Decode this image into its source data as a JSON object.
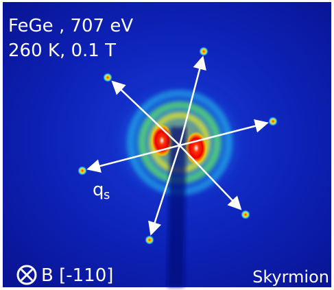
{
  "labels": {
    "sample": "FeGe , 707 eV",
    "conditions": "260 K, 0.1 T",
    "q": "q",
    "q_sub": "s",
    "field": "B [-110]",
    "phase": "Skyrmion"
  }
}
